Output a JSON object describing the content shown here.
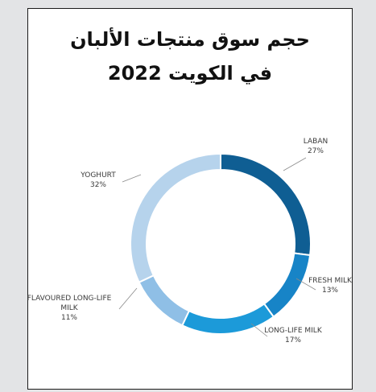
{
  "title_line1": "حجم سوق منتجات الألبان",
  "title_line2": "في الكويت 2022",
  "chart_data": {
    "type": "pie",
    "donut": true,
    "title": "حجم سوق منتجات الألبان في الكويت 2022",
    "slices": [
      {
        "label": "LABAN",
        "value": 27,
        "value_label": "27%",
        "color": "#0f5e93"
      },
      {
        "label": "FRESH MILK",
        "value": 13,
        "value_label": "13%",
        "color": "#1784c7"
      },
      {
        "label": "LONG-LIFE MILK",
        "value": 17,
        "value_label": "17%",
        "color": "#1c9ad9"
      },
      {
        "label": "FLAVOURED LONG-LIFE MILK",
        "value": 11,
        "value_label": "11%",
        "color": "#8fbfe6"
      },
      {
        "label": "YOGHURT",
        "value": 32,
        "value_label": "32%",
        "color": "#b6d3ec"
      }
    ]
  }
}
